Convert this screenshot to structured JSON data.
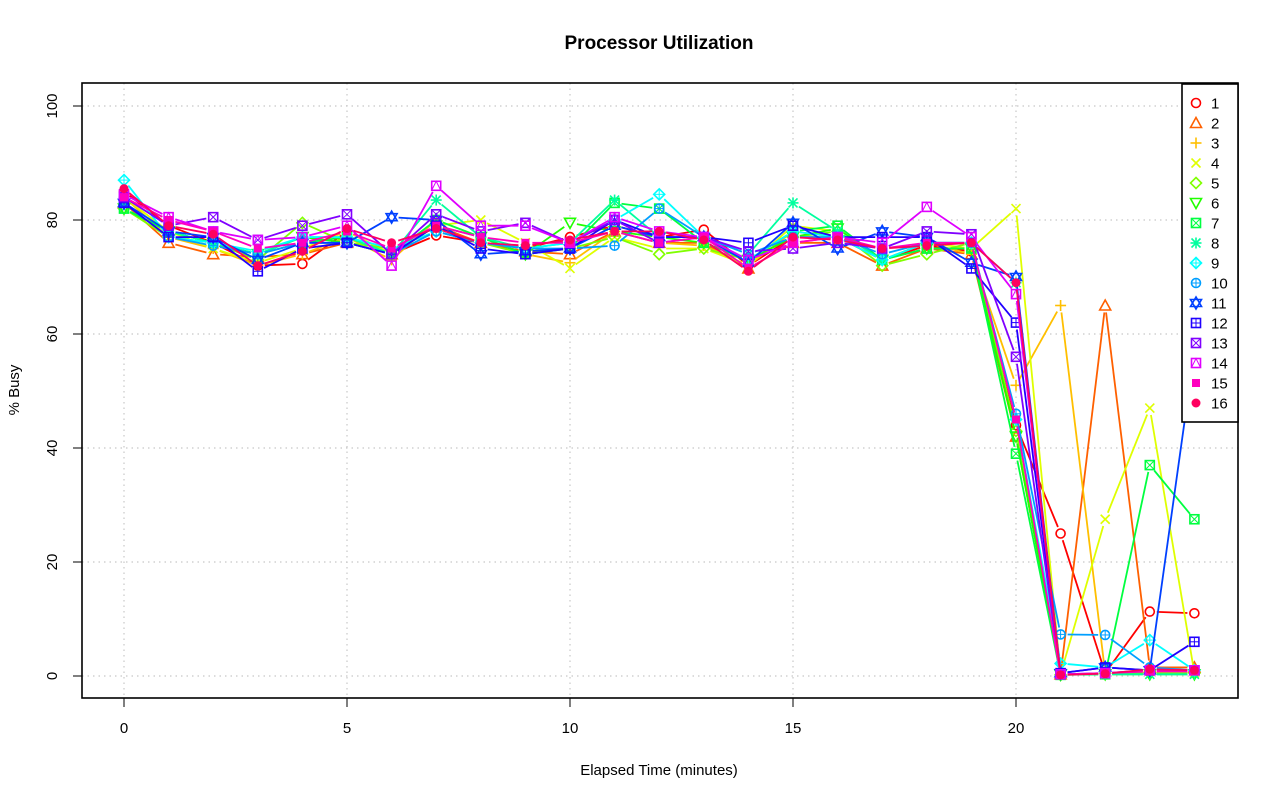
{
  "chart_data": {
    "type": "line",
    "title": "Processor Utilization",
    "xlabel": "Elapsed Time (minutes)",
    "ylabel": "% Busy",
    "xlim": [
      -0.96,
      25
    ],
    "ylim": [
      -4,
      104
    ],
    "x_ticks": [
      0,
      5,
      10,
      15,
      20
    ],
    "y_ticks": [
      0,
      20,
      40,
      60,
      80,
      100
    ],
    "grid": true,
    "legend_position": "top-right",
    "x": [
      0,
      1,
      2,
      3,
      4,
      5,
      6,
      7,
      8,
      9,
      10,
      11,
      12,
      13,
      14,
      15,
      16,
      17,
      18,
      19,
      20,
      21,
      22,
      23,
      24
    ],
    "series": [
      {
        "name": "1",
        "color": "#FF0000",
        "marker": "circle-open",
        "values": [
          85,
          79,
          76,
          72,
          72.3,
          78,
          74,
          77.3,
          76,
          75,
          77,
          79,
          77,
          78.3,
          72,
          77,
          77,
          73,
          75.5,
          74.5,
          44,
          25,
          0.5,
          11.3,
          11
        ]
      },
      {
        "name": "2",
        "color": "#FF6000",
        "marker": "triangle-up-open",
        "values": [
          83,
          76,
          74,
          73.5,
          74,
          76,
          74,
          79,
          76,
          74.5,
          74,
          78,
          76,
          76,
          71.5,
          76,
          76,
          72,
          75,
          74,
          42,
          0.3,
          65,
          1.5,
          1.5
        ]
      },
      {
        "name": "3",
        "color": "#FFBF00",
        "marker": "plus",
        "values": [
          84,
          77,
          75,
          72,
          74,
          77,
          73,
          80,
          77,
          74,
          72.5,
          78,
          76,
          75.5,
          72,
          78,
          77,
          73,
          76,
          74,
          51,
          65,
          0.5,
          0.5,
          0.5
        ]
      },
      {
        "name": "4",
        "color": "#DFFF00",
        "marker": "cross",
        "values": [
          84,
          78,
          75,
          72.5,
          75,
          78,
          74,
          79,
          80,
          76,
          71.5,
          77,
          75,
          75,
          72,
          79,
          78,
          73,
          76,
          75,
          82,
          0.3,
          27.5,
          47,
          0.5
        ]
      },
      {
        "name": "5",
        "color": "#80FF00",
        "marker": "diamond-open",
        "values": [
          82,
          77,
          76,
          73,
          79.5,
          76,
          75,
          78,
          76,
          74,
          75,
          77,
          74,
          75,
          73,
          77,
          78,
          72,
          74,
          76,
          43,
          0.2,
          0.5,
          0.5,
          0.5
        ]
      },
      {
        "name": "6",
        "color": "#20FF00",
        "marker": "triangle-down-open",
        "values": [
          82,
          78,
          76,
          74,
          77,
          76,
          74,
          79,
          77,
          74,
          79.5,
          78,
          77,
          76,
          73,
          77,
          78.5,
          73,
          75,
          75,
          42,
          0.2,
          0.3,
          0.3,
          0.3
        ]
      },
      {
        "name": "7",
        "color": "#00FF40",
        "marker": "square-cross",
        "values": [
          82,
          78,
          76,
          74,
          76,
          77,
          74,
          80,
          77,
          74,
          75,
          83,
          82,
          76,
          73,
          78,
          79,
          73,
          75,
          75,
          39,
          0.2,
          0.3,
          37,
          27.5
        ]
      },
      {
        "name": "8",
        "color": "#00FF9F",
        "marker": "asterisk",
        "values": [
          83,
          78,
          76,
          74,
          77,
          77,
          74,
          83.5,
          77,
          75,
          76,
          83.5,
          77,
          77,
          74,
          83,
          78,
          73,
          76,
          76,
          69,
          0.3,
          0.3,
          0.3,
          0.3
        ]
      },
      {
        "name": "9",
        "color": "#00FFFF",
        "marker": "diamond-plus",
        "values": [
          87,
          77,
          76,
          74.5,
          77,
          77,
          75,
          78,
          76,
          75,
          76,
          80,
          84.5,
          77,
          73,
          78,
          77,
          73,
          76,
          76,
          45,
          2.2,
          1.5,
          6.3,
          1
        ]
      },
      {
        "name": "10",
        "color": "#009FFF",
        "marker": "circle-plus",
        "values": [
          83,
          77,
          75.5,
          74,
          76,
          76,
          74,
          78,
          76,
          75,
          75,
          75.5,
          82,
          77,
          74,
          77,
          77,
          74,
          76,
          76,
          46,
          7.3,
          7.2,
          1.5,
          1
        ]
      },
      {
        "name": "11",
        "color": "#0040FF",
        "marker": "star-of-david",
        "values": [
          83,
          78,
          77,
          73,
          76,
          76,
          80.5,
          80,
          74,
          74.5,
          75,
          79,
          77,
          77,
          72.5,
          79.5,
          75,
          78,
          77,
          72.5,
          70,
          0.5,
          1.5,
          1,
          57
        ]
      },
      {
        "name": "12",
        "color": "#2000FF",
        "marker": "square-plus",
        "values": [
          83,
          77,
          77,
          71,
          75,
          76,
          74,
          79,
          75,
          74,
          75,
          80,
          77,
          77,
          76,
          79,
          77,
          77,
          77,
          71.5,
          62,
          0.5,
          1.5,
          1,
          6
        ]
      },
      {
        "name": "13",
        "color": "#8000FF",
        "marker": "square-x",
        "values": [
          84,
          79,
          80.5,
          76.5,
          79,
          81,
          74,
          81,
          78,
          79.5,
          76,
          80,
          76,
          77,
          74.5,
          75,
          76,
          75,
          78,
          77.5,
          56,
          0.3,
          0.5,
          1,
          1
        ]
      },
      {
        "name": "14",
        "color": "#DF00FF",
        "marker": "square-triangle",
        "values": [
          84.5,
          80.5,
          78,
          76.5,
          77,
          79,
          72,
          86,
          79,
          79,
          76,
          80.5,
          78,
          77,
          73,
          76,
          77,
          76,
          82.3,
          77,
          67,
          0.3,
          0.5,
          1,
          1
        ]
      },
      {
        "name": "15",
        "color": "#FF00BF",
        "marker": "square-filled",
        "values": [
          84,
          80,
          78,
          75,
          76,
          78,
          75,
          79,
          77,
          76,
          76,
          78,
          76,
          77,
          71.5,
          76,
          77,
          75,
          76,
          76,
          45,
          0.2,
          0.5,
          0.8,
          0.8
        ]
      },
      {
        "name": "16",
        "color": "#FF0060",
        "marker": "circle-filled",
        "values": [
          85.5,
          79,
          77.5,
          72,
          74.5,
          78.5,
          76,
          78.5,
          76,
          75.5,
          76.5,
          78,
          78,
          76.5,
          71,
          77,
          76.5,
          75,
          75.5,
          76,
          69,
          0.2,
          0.4,
          1.2,
          1
        ]
      }
    ]
  }
}
